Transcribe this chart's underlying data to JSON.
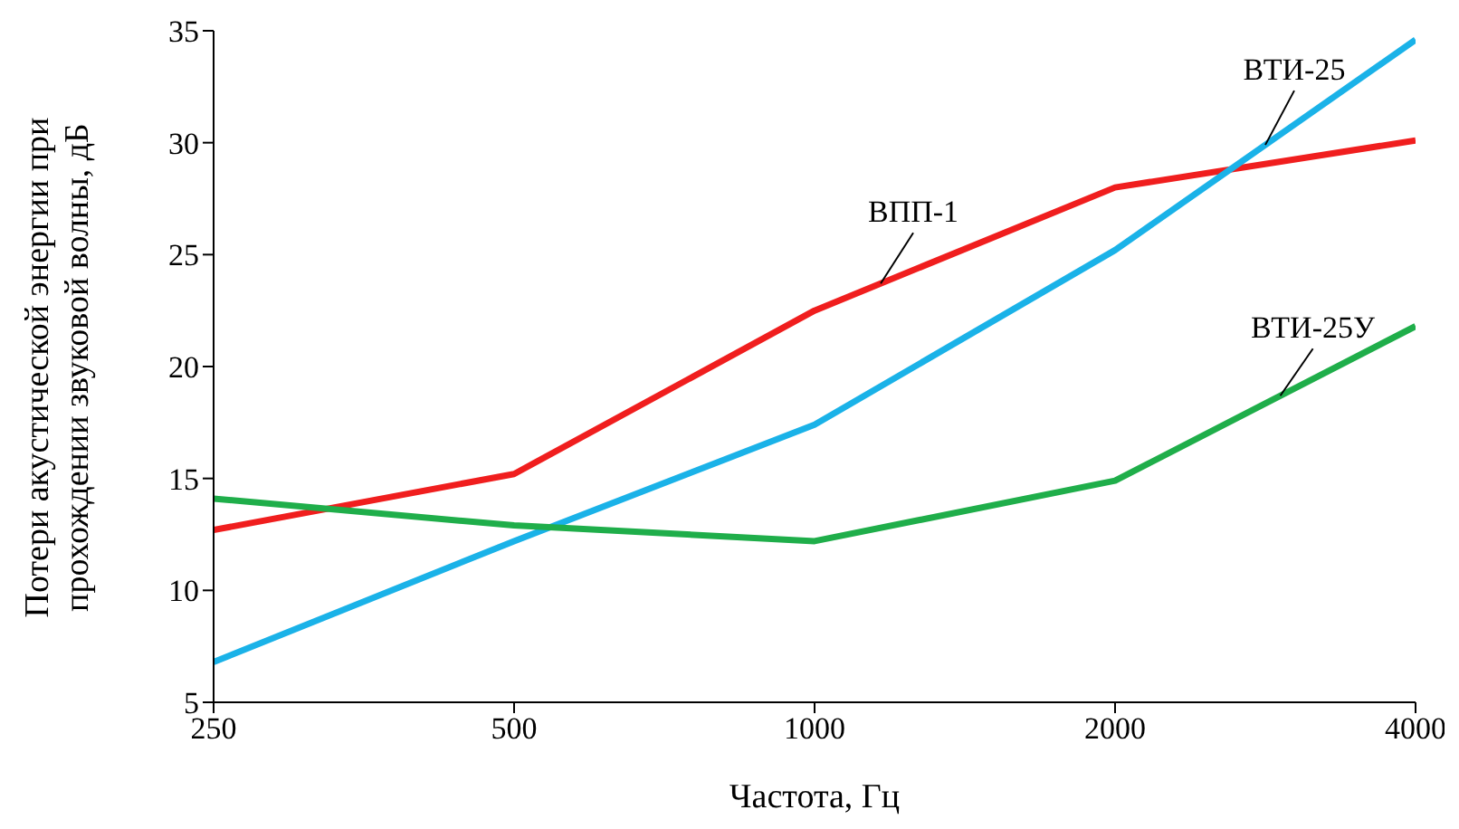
{
  "chart_data": {
    "type": "line",
    "xlabel": "Частота, Гц",
    "ylabel": "Потери акустической  энергии при прохождении звуковой волны, дБ",
    "categories": [
      "250",
      "500",
      "1000",
      "2000",
      "4000"
    ],
    "ylim": [
      5,
      35
    ],
    "yticks": [
      5,
      10,
      15,
      20,
      25,
      30,
      35
    ],
    "grid": false,
    "legend": false,
    "marker": "none",
    "line_style": "solid",
    "series": [
      {
        "name": "ВПП-1",
        "color": "#f01e1e",
        "values": [
          12.7,
          15.2,
          22.5,
          28.0,
          30.1
        ]
      },
      {
        "name": "ВТИ-25",
        "color": "#1ab2e8",
        "values": [
          6.8,
          12.2,
          17.4,
          25.2,
          34.6
        ]
      },
      {
        "name": "ВТИ-25У",
        "color": "#1fae4a",
        "values": [
          14.1,
          12.9,
          12.2,
          14.9,
          21.8
        ]
      }
    ]
  }
}
